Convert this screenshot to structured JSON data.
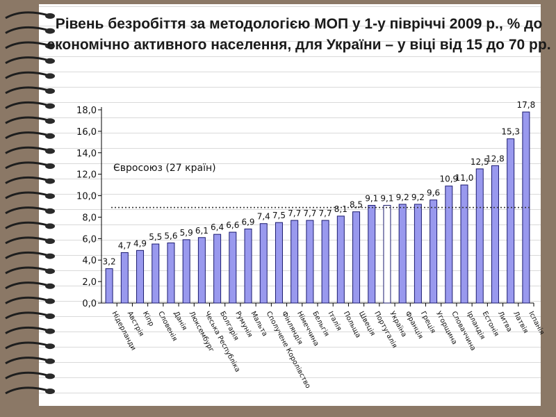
{
  "title": "Рівень безробіття за методологією МОП у 1-у півріччі 2009 р., % до економічно активного населення, для України – у віці від 15 до 70 рр.",
  "colors": {
    "bar": "#9999ee",
    "bar_edge": "#1a1a6e",
    "highlight_bar": "#ffffff",
    "reference_line": "#333333",
    "background_frame": "#8b7866"
  },
  "chart_data": {
    "type": "bar",
    "categories": [
      "Нідерланди",
      "Австрія",
      "Кіпр",
      "Словенія",
      "Данія",
      "Люксембург",
      "Чеська Республіка",
      "Болгарія",
      "Румунія",
      "Мальта",
      "Сполучене Королівство",
      "Фінляндія",
      "Німеччина",
      "Бельгія",
      "Італія",
      "Польща",
      "Швеція",
      "Португалія",
      "Україна",
      "Франція",
      "Греція",
      "Угорщина",
      "Словаччина",
      "Ірландія",
      "Естонія",
      "Литва",
      "Латвія",
      "Іспанія"
    ],
    "values": [
      3.2,
      4.7,
      4.9,
      5.5,
      5.6,
      5.9,
      6.1,
      6.4,
      6.6,
      6.9,
      7.4,
      7.5,
      7.7,
      7.7,
      7.7,
      8.1,
      8.5,
      9.1,
      9.1,
      9.2,
      9.2,
      9.6,
      10.9,
      11.0,
      12.5,
      12.8,
      15.3,
      17.8
    ],
    "data_labels": [
      "3,2",
      "4,7",
      "4,9",
      "5,5",
      "5,6",
      "5,9",
      "6,1",
      "6,4",
      "6,6",
      "6,9",
      "7,4",
      "7,5",
      "7,7",
      "7,7",
      "7,7",
      "8,1",
      "8,5",
      "9,1",
      "9,1",
      "9,2",
      "9,2",
      "9,6",
      "10,9",
      "11,0",
      "12,5",
      "12,8",
      "15,3",
      "17,8"
    ],
    "highlight_category": "Україна",
    "y_ticks": [
      "0,0",
      "2,0",
      "4,0",
      "6,0",
      "8,0",
      "10,0",
      "12,0",
      "14,0",
      "16,0",
      "18,0"
    ],
    "ylim": [
      0,
      18
    ],
    "reference_line": {
      "label": "Євросоюз (27 країн)",
      "value": 8.9
    },
    "xlabel": "",
    "ylabel": "",
    "grid": false,
    "legend": "none"
  }
}
